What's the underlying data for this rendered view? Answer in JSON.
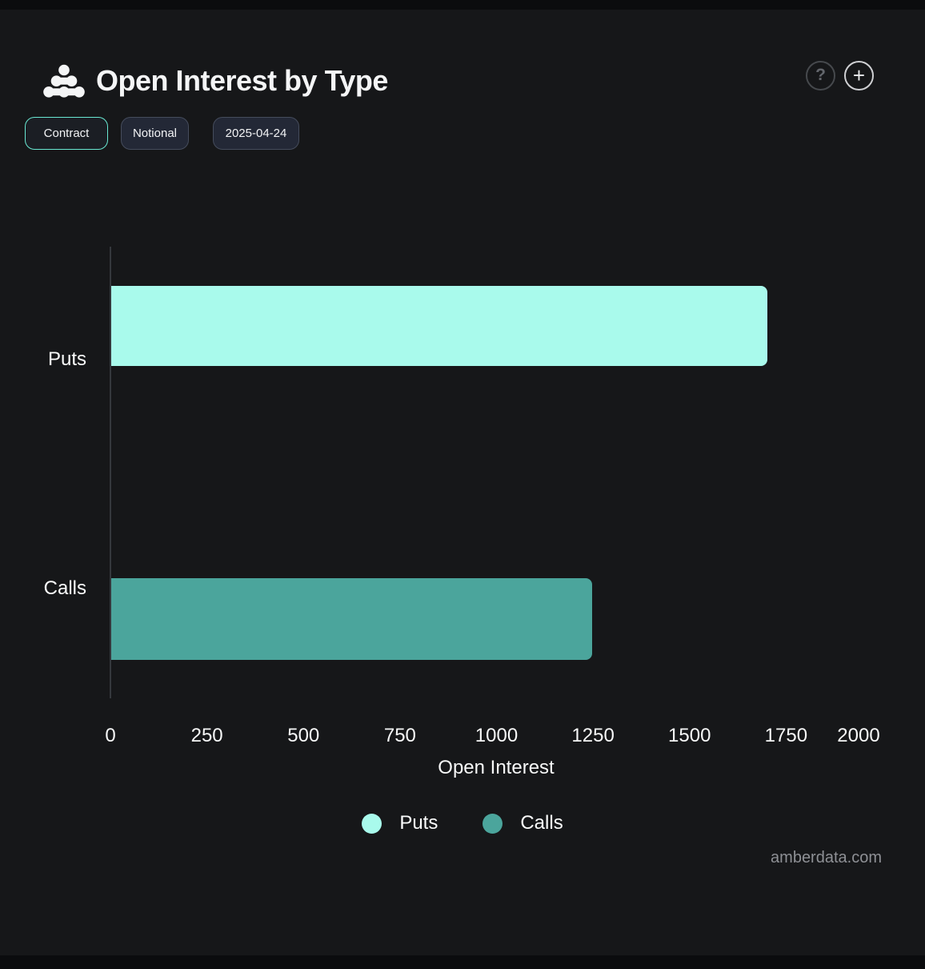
{
  "header": {
    "title": "Open Interest by Type",
    "help_icon_glyph": "?",
    "add_icon_glyph": "+"
  },
  "toolbar": {
    "buttons": [
      {
        "label": "Contract",
        "active": true
      },
      {
        "label": "Notional",
        "active": false
      },
      {
        "label": "2025-04-24",
        "active": false
      }
    ]
  },
  "chart_data": {
    "type": "bar",
    "orientation": "horizontal",
    "title": "Open Interest by Type",
    "categories": [
      "Puts",
      "Calls"
    ],
    "series": [
      {
        "name": "Puts",
        "category": "Puts",
        "value": 1700,
        "color": "#a9faec"
      },
      {
        "name": "Calls",
        "category": "Calls",
        "value": 1245,
        "color": "#4ba59c"
      }
    ],
    "xlabel": "Open Interest",
    "xlim": [
      0,
      2000
    ],
    "xticks": [
      0,
      250,
      500,
      750,
      1000,
      1250,
      1500,
      1750,
      2000
    ],
    "grid": false,
    "legend": {
      "position": "bottom",
      "entries": [
        {
          "label": "Puts",
          "color": "#a9faec"
        },
        {
          "label": "Calls",
          "color": "#4ba59c"
        }
      ]
    }
  },
  "footer": {
    "watermark": "amberdata.com"
  },
  "colors": {
    "background": "#161719",
    "accent": "#69e8d2",
    "puts_bar": "#a9faec",
    "calls_bar": "#4ba59c",
    "axis_line": "#35383d"
  }
}
